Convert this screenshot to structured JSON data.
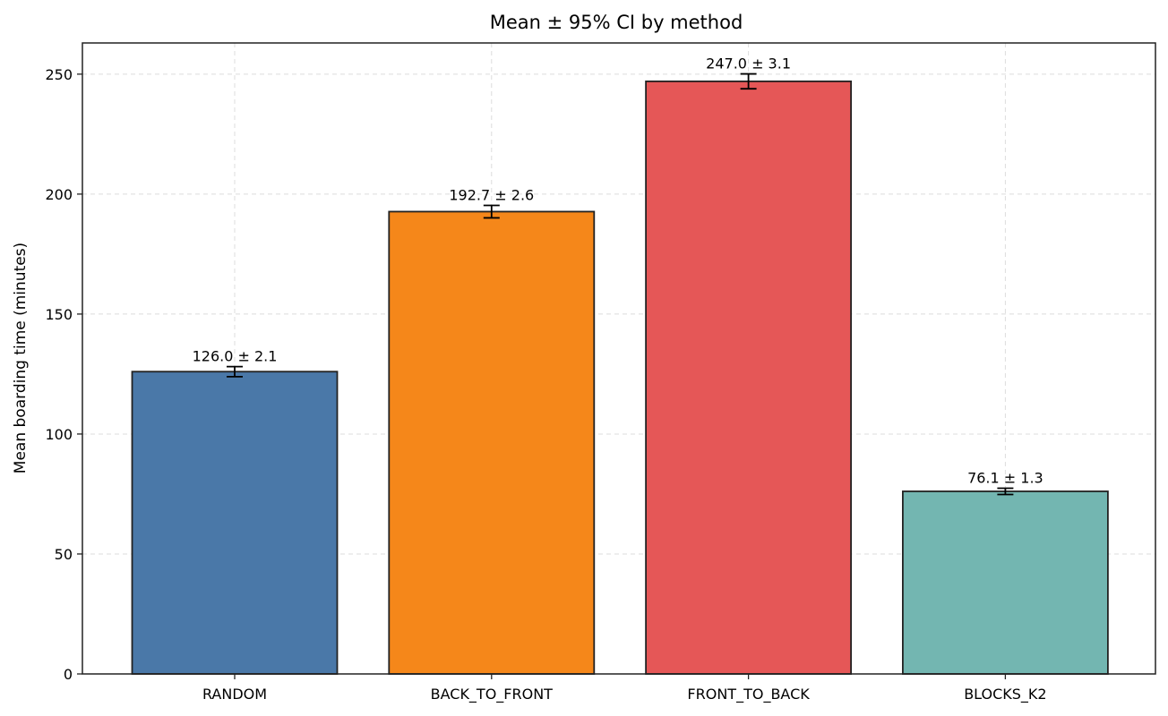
{
  "chart_data": {
    "type": "bar",
    "title": "Mean ± 95% CI by method",
    "xlabel": "",
    "ylabel": "Mean boarding time (minutes)",
    "categories": [
      "RANDOM",
      "BACK_TO_FRONT",
      "FRONT_TO_BACK",
      "BLOCKS_K2"
    ],
    "values": [
      126.0,
      192.7,
      247.0,
      76.1
    ],
    "errors": [
      2.1,
      2.6,
      3.1,
      1.3
    ],
    "data_labels": [
      "126.0 ± 2.1",
      "192.7 ± 2.6",
      "247.0 ± 3.1",
      "76.1 ± 1.3"
    ],
    "colors": [
      "#4a78a8",
      "#f5871a",
      "#e55757",
      "#73b6b1"
    ],
    "yticks": [
      0,
      50,
      100,
      150,
      200,
      250
    ],
    "ylim": [
      0,
      263
    ],
    "grid": true,
    "legend": "none"
  }
}
